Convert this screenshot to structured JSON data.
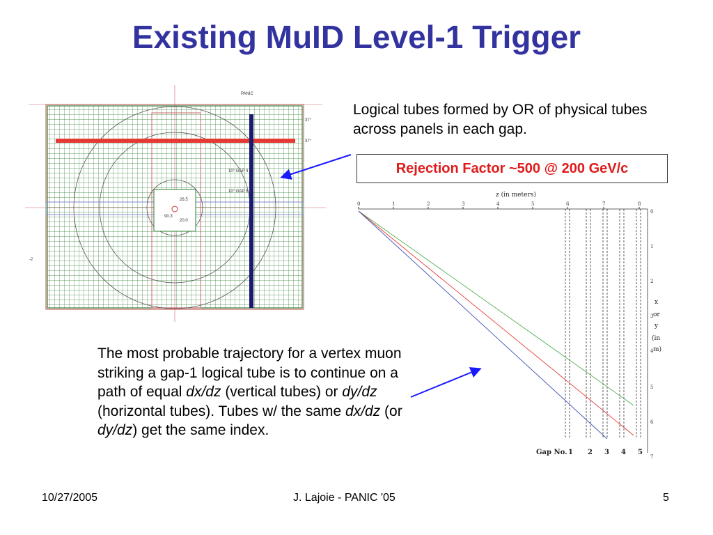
{
  "slide": {
    "title": "Existing MuID Level-1 Trigger",
    "callout_top": "Logical tubes formed by OR of physical tubes across panels in each gap.",
    "rejection": "Rejection Factor ~500 @ 200 GeV/c",
    "body_parts": [
      "The most probable trajectory for a vertex muon striking a gap-1 logical tube is to continue on a path of equal ",
      "dx/dz",
      " (vertical tubes) or ",
      "dy/dz",
      " (horizontal tubes). Tubes w/ the same ",
      "dx/dz",
      " (or ",
      "dy/dz",
      ") get the same index."
    ]
  },
  "panel_diagram": {
    "panel_label": "PANIC",
    "labels": [
      "37°",
      "37°",
      "10° GAP 4",
      "10° GAP 5",
      "26.5",
      "90.3",
      "20.0",
      "-2"
    ],
    "colors": {
      "grid": "#2e7d32",
      "frame": "#c66",
      "highlight_row": "#e53935",
      "highlight_col": "#1a1a6e"
    }
  },
  "trajectory_diagram": {
    "z_axis_label": "z (in meters)",
    "z_ticks": [
      "0",
      "1",
      "2",
      "3",
      "4",
      "5",
      "6",
      "7",
      "8"
    ],
    "xy_axis_label": [
      "x",
      "or",
      "y",
      "(in",
      "m)"
    ],
    "xy_ticks": [
      "0",
      "1",
      "2",
      "3",
      "4",
      "5",
      "6",
      "7"
    ],
    "gap_row_label": "Gap No.",
    "gap_numbers": [
      "1",
      "2",
      "3",
      "4",
      "5"
    ],
    "track_colors": [
      "#4caf50",
      "#e53935",
      "#3f51b5"
    ]
  },
  "footer": {
    "date": "10/27/2005",
    "author": "J. Lajoie - PANIC '05",
    "page": "5"
  },
  "colors": {
    "title": "#3333a0",
    "arrow": "#1a1aff",
    "rejection_text": "#e01b1b"
  }
}
